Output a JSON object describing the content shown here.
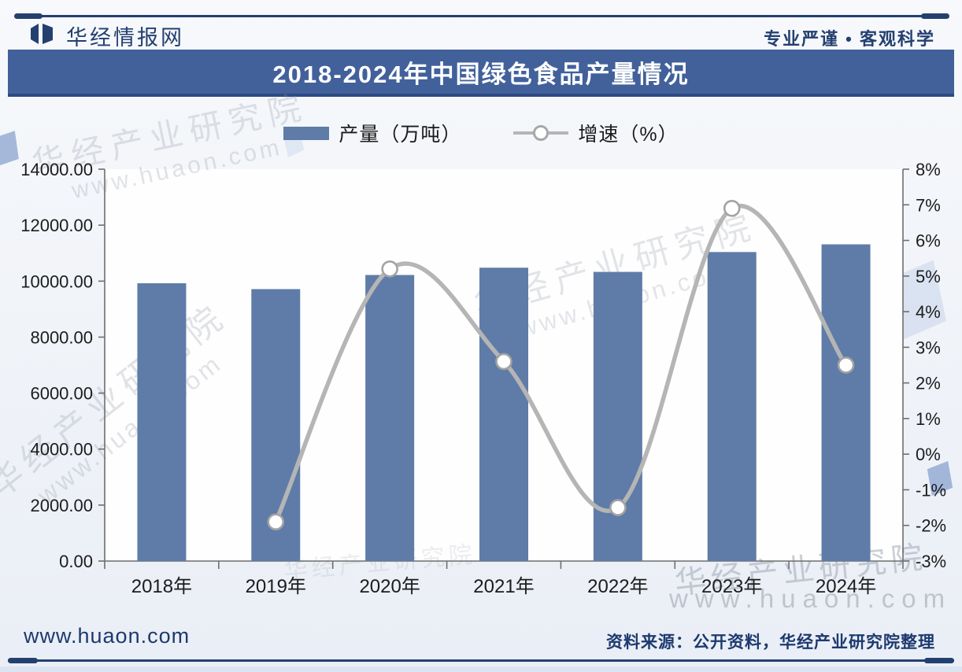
{
  "header": {
    "brand": "华经情报网",
    "slogan": "专业严谨 • 客观科学"
  },
  "title_bar": {
    "title": "2018-2024年中国绿色食品产量情况",
    "bg_color": "#42619b"
  },
  "legend": [
    {
      "label": "产量（万吨）",
      "type": "bar",
      "color": "#5f7ca8"
    },
    {
      "label": "增速（%）",
      "type": "line",
      "color": "#b5b5b5"
    }
  ],
  "chart_data": {
    "type": "bar+line-combo",
    "title": "2018-2024年中国绿色食品产量情况",
    "categories": [
      "2018年",
      "2019年",
      "2020年",
      "2021年",
      "2022年",
      "2023年",
      "2024年"
    ],
    "series": [
      {
        "name": "产量（万吨）",
        "type": "bar",
        "axis": "left",
        "color": "#5f7ca8",
        "values": [
          9925,
          9715,
          10220,
          10480,
          10330,
          11040,
          11315
        ]
      },
      {
        "name": "增速（%）",
        "type": "line",
        "axis": "right",
        "color": "#b5b5b5",
        "marker": "open-circle",
        "values": [
          null,
          -1.9,
          5.2,
          2.6,
          -1.5,
          6.9,
          2.5
        ]
      }
    ],
    "left_axis": {
      "min": 0,
      "max": 14000,
      "step": 2000,
      "tick_labels": [
        "0.00",
        "2000.00",
        "4000.00",
        "6000.00",
        "8000.00",
        "10000.00",
        "12000.00",
        "14000.00"
      ]
    },
    "right_axis": {
      "min": -3,
      "max": 8,
      "step": 1,
      "tick_labels": [
        "-3%",
        "-2%",
        "-1%",
        "0%",
        "1%",
        "2%",
        "3%",
        "4%",
        "5%",
        "6%",
        "7%",
        "8%"
      ]
    },
    "grid": false,
    "legend_position": "top-center"
  },
  "watermark": {
    "brand": "华经产业研究院",
    "url": "www.huaon.com",
    "url_spaced": "www.huaon.com"
  },
  "footer": {
    "url": "www.huaon.com",
    "source": "资料来源：公开资料，华经产业研究院整理"
  },
  "colors": {
    "navy": "#24406f",
    "bar": "#5f7ca8",
    "line": "#b5b5b5",
    "title_bg": "#42619b",
    "axis": "#6e6e6e",
    "label": "#1c1c1c"
  }
}
